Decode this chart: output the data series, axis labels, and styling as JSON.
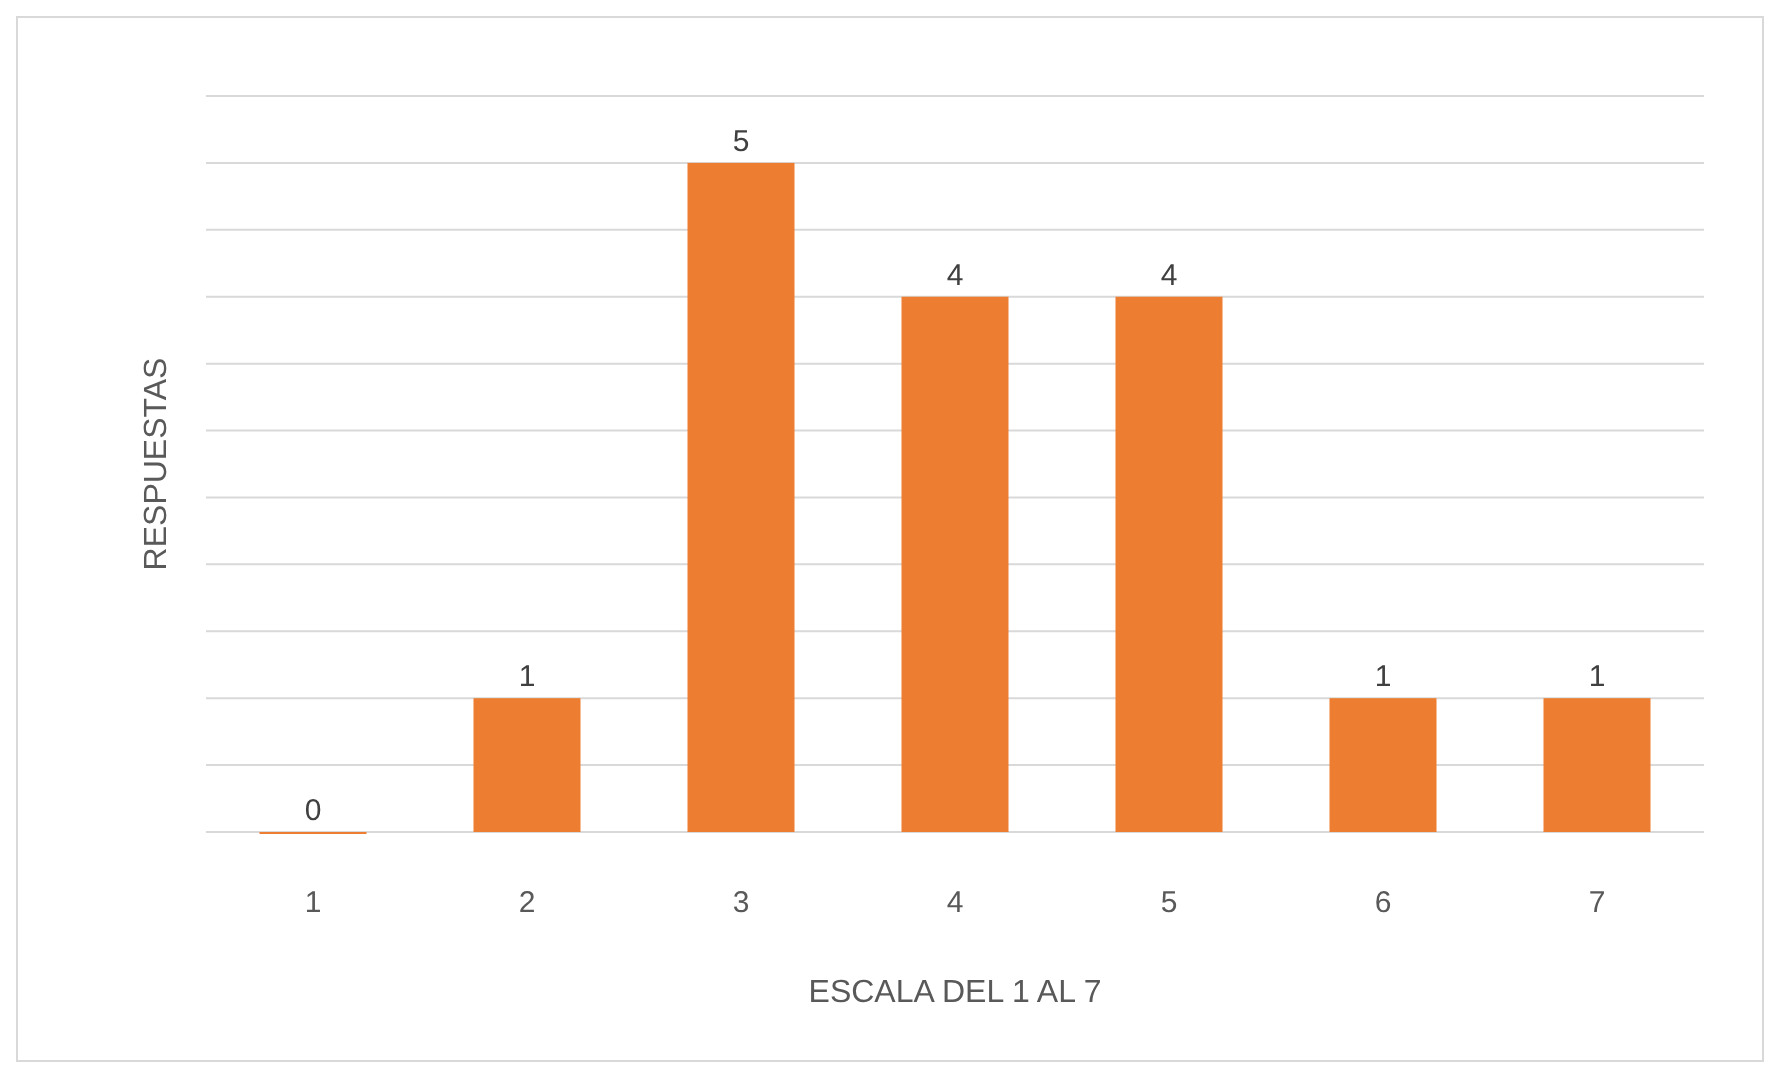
{
  "chart_data": {
    "type": "bar",
    "xlabel": "ESCALA DEL 1 AL 7",
    "ylabel": "RESPUESTAS",
    "categories": [
      "1",
      "2",
      "3",
      "4",
      "5",
      "6",
      "7"
    ],
    "values": [
      0,
      1,
      5,
      4,
      4,
      1,
      1
    ],
    "color": "#ed7d31",
    "ylim": [
      0,
      5.5
    ],
    "yticks": [
      {
        "value": 0,
        "label": null
      },
      {
        "value": 0.5,
        "label": null
      },
      {
        "value": 1,
        "label": null
      },
      {
        "value": 1.5,
        "label": null
      },
      {
        "value": 2,
        "label": null
      },
      {
        "value": 2.5,
        "label": null
      },
      {
        "value": 3,
        "label": null
      },
      {
        "value": 3.5,
        "label": null
      },
      {
        "value": 4,
        "label": null
      },
      {
        "value": 4.5,
        "label": null
      },
      {
        "value": 5,
        "label": null
      },
      {
        "value": 5.5,
        "label": null
      }
    ],
    "tick_labels": "x",
    "grid": true,
    "data_labels": true
  }
}
